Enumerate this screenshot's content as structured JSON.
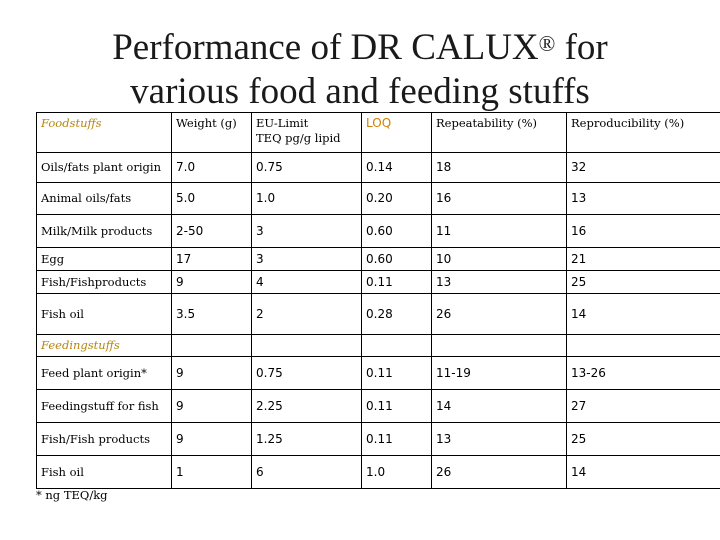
{
  "title_line1": "Performance of DR CALUX",
  "title_reg": "®",
  "title_line1b": " for",
  "title_line2": "various food and feeding stuffs",
  "headers": {
    "c1": "Foodstuffs",
    "c2": "Weight (g)",
    "c3a": "EU-Limit",
    "c3b": "TEQ pg/g lipid",
    "c4": "LOQ",
    "c5": "Repeatability (%)",
    "c6": "Reproducibility (%)"
  },
  "food_rows": [
    {
      "name": "Oils/fats plant origin",
      "weight": "7.0",
      "limit": "0.75",
      "loq": "0.14",
      "rep": "18",
      "repro": "32"
    },
    {
      "name": "Animal oils/fats",
      "weight": "5.0",
      "limit": "1.0",
      "loq": "0.20",
      "rep": "16",
      "repro": "13"
    },
    {
      "name": "Milk/Milk products",
      "weight": "2-50",
      "limit": "3",
      "loq": "0.60",
      "rep": "11",
      "repro": "16"
    },
    {
      "name": "Egg",
      "weight": "17",
      "limit": "3",
      "loq": "0.60",
      "rep": "10",
      "repro": "21"
    },
    {
      "name": "Fish/Fishproducts",
      "weight": "9",
      "limit": "4",
      "loq": "0.11",
      "rep": "13",
      "repro": "25"
    },
    {
      "name": "Fish oil",
      "weight": "3.5",
      "limit": "2",
      "loq": "0.28",
      "rep": "26",
      "repro": "14"
    }
  ],
  "section_label": "Feedingstuffs",
  "feed_rows": [
    {
      "name": "Feed plant origin*",
      "weight": "9",
      "limit": "0.75",
      "loq": "0.11",
      "rep": "11-19",
      "repro": "13-26"
    },
    {
      "name": "Feedingstuff for fish",
      "weight": "9",
      "limit": "2.25",
      "loq": "0.11",
      "rep": "14",
      "repro": "27"
    },
    {
      "name": "Fish/Fish products",
      "weight": "9",
      "limit": "1.25",
      "loq": "0.11",
      "rep": "13",
      "repro": "25"
    },
    {
      "name": "Fish oil",
      "weight": "1",
      "limit": "6",
      "loq": "1.0",
      "rep": "26",
      "repro": "14"
    }
  ],
  "footnote": "* ng TEQ/kg"
}
